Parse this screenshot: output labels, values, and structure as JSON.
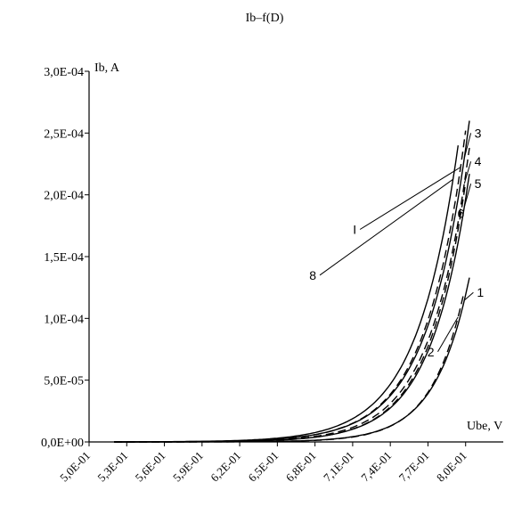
{
  "chart_data": {
    "type": "line",
    "title": "Ib–f(D)",
    "xlabel": "Ube, V",
    "ylabel": "Ib, A",
    "xlim": [
      0.5,
      0.83
    ],
    "ylim": [
      0,
      0.0003
    ],
    "x_ticks": [
      0.5,
      0.53,
      0.56,
      0.59,
      0.62,
      0.65,
      0.68,
      0.71,
      0.74,
      0.77,
      0.8
    ],
    "x_tick_labels": [
      "5,0E-01",
      "5,3E-01",
      "5,6E-01",
      "5,9E-01",
      "6,2E-01",
      "6,5E-01",
      "6,8E-01",
      "7,1E-01",
      "7,4E-01",
      "7,7E-01",
      "8,0E-01"
    ],
    "y_ticks": [
      0,
      5e-05,
      0.0001,
      0.00015,
      0.0002,
      0.00025,
      0.0003
    ],
    "y_tick_labels": [
      "0,0E+00",
      "5,0E-05",
      "1,0E-04",
      "1,5E-04",
      "2,0E-04",
      "2,5E-04",
      "3,0E-04"
    ],
    "grid": false,
    "series": [
      {
        "label": "3",
        "style": "solid",
        "vt": 0.0325,
        "x_end": 0.803,
        "y_end": 0.00026
      },
      {
        "label": "I",
        "style": "dashed",
        "vt": 0.032,
        "x_end": 0.8,
        "y_end": 0.000252
      },
      {
        "label": "4",
        "style": "dashed",
        "vt": 0.031,
        "x_end": 0.803,
        "y_end": 0.000238
      },
      {
        "label": "5",
        "style": "solid",
        "vt": 0.0305,
        "x_end": 0.803,
        "y_end": 0.000217
      },
      {
        "label": "6",
        "style": "dashed",
        "vt": 0.03,
        "x_end": 0.8,
        "y_end": 0.00021
      },
      {
        "label": "8",
        "style": "solid",
        "vt": 0.033,
        "x_end": 0.794,
        "y_end": 0.00024
      },
      {
        "label": "1",
        "style": "solid",
        "vt": 0.027,
        "x_end": 0.803,
        "y_end": 0.000133
      },
      {
        "label": "2",
        "style": "dashed",
        "vt": 0.026,
        "x_end": 0.798,
        "y_end": 0.000118
      }
    ],
    "curve_labels": [
      {
        "text": "3",
        "x": 0.807,
        "y": 0.00025
      },
      {
        "text": "4",
        "x": 0.807,
        "y": 0.000227
      },
      {
        "text": "5",
        "x": 0.807,
        "y": 0.000209
      },
      {
        "text": "6",
        "x": 0.799,
        "y": 0.000185
      },
      {
        "text": "I",
        "x": 0.713,
        "y": 0.000172
      },
      {
        "text": "8",
        "x": 0.681,
        "y": 0.000135
      },
      {
        "text": "1",
        "x": 0.809,
        "y": 0.000121
      },
      {
        "text": "2",
        "x": 0.775,
        "y": 7.3e-05
      }
    ]
  }
}
